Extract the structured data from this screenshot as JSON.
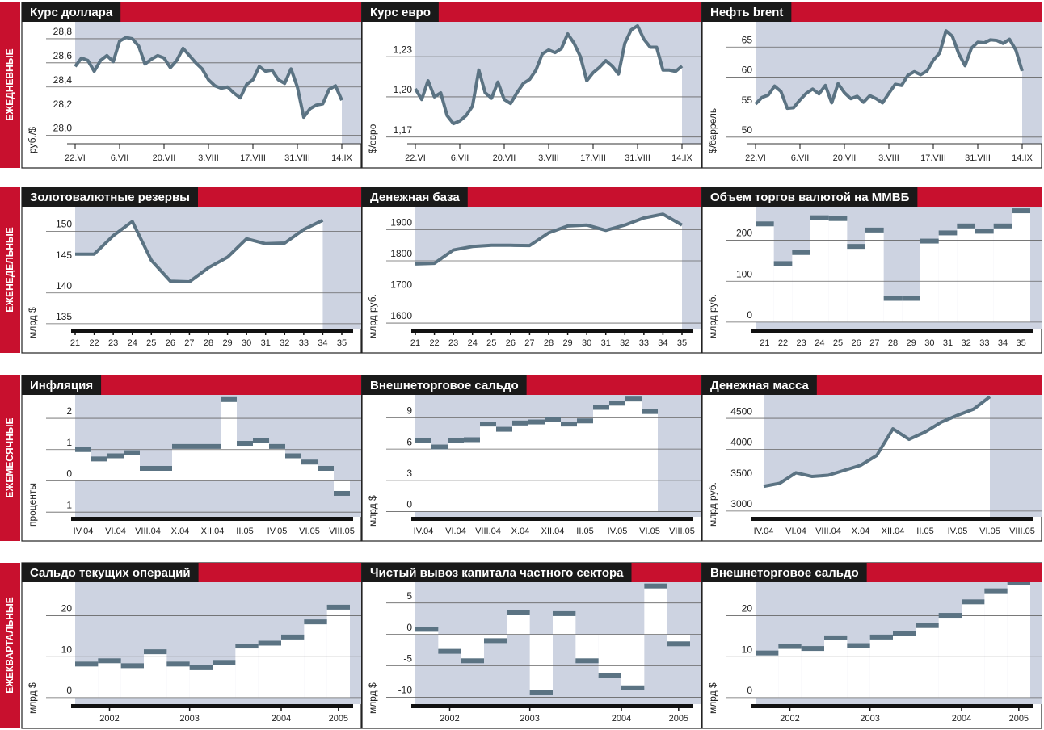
{
  "row_labels": [
    "ЕЖЕДНЕВНЫЕ",
    "ЕЖЕНЕДЕЛЬНЫЕ",
    "ЕЖЕМЕСЯЧНЫЕ",
    "ЕЖЕКВАРТАЛЬНЫЕ"
  ],
  "chart_data": [
    {
      "type": "line",
      "title": "Курс доллара",
      "y_label": "руб./$",
      "color": "#5b7383",
      "xlim": [
        0,
        42
      ],
      "xticks": [
        {
          "value": 0,
          "label": "22.VI"
        },
        {
          "value": 7,
          "label": "6.VII"
        },
        {
          "value": 14,
          "label": "20.VII"
        },
        {
          "value": 21,
          "label": "3.VIII"
        },
        {
          "value": 28,
          "label": "17.VIII"
        },
        {
          "value": 35,
          "label": "31.VIII"
        },
        {
          "value": 42,
          "label": "14.IX"
        }
      ],
      "ylim": [
        27.93,
        28.94
      ],
      "yticks": [
        {
          "value": 28.0,
          "label": "28,0"
        },
        {
          "value": 28.2,
          "label": "28,2"
        },
        {
          "value": 28.4,
          "label": "28,4"
        },
        {
          "value": 28.6,
          "label": "28,6"
        },
        {
          "value": 28.8,
          "label": "28,8"
        }
      ],
      "values": [
        28.57,
        28.64,
        28.62,
        28.53,
        28.62,
        28.66,
        28.61,
        28.78,
        28.81,
        28.8,
        28.74,
        28.59,
        28.63,
        28.66,
        28.64,
        28.56,
        28.62,
        28.72,
        28.66,
        28.6,
        28.55,
        28.46,
        28.41,
        28.39,
        28.4,
        28.35,
        28.31,
        28.42,
        28.46,
        28.57,
        28.53,
        28.54,
        28.46,
        28.43,
        28.55,
        28.4,
        28.15,
        28.22,
        28.25,
        28.26,
        28.38,
        28.41,
        28.29
      ]
    },
    {
      "type": "line",
      "title": "Курс евро",
      "y_label": "$/евро",
      "color": "#5b7383",
      "xlim": [
        0,
        42
      ],
      "xticks": [
        {
          "value": 0,
          "label": "22.VI"
        },
        {
          "value": 7,
          "label": "6.VII"
        },
        {
          "value": 14,
          "label": "20.VII"
        },
        {
          "value": 21,
          "label": "3.VIII"
        },
        {
          "value": 28,
          "label": "17.VIII"
        },
        {
          "value": 35,
          "label": "31.VIII"
        },
        {
          "value": 42,
          "label": "14.IX"
        }
      ],
      "ylim": [
        1.165,
        1.256
      ],
      "yticks": [
        {
          "value": 1.17,
          "label": "1,17"
        },
        {
          "value": 1.2,
          "label": "1,20"
        },
        {
          "value": 1.23,
          "label": "1,23"
        }
      ],
      "values": [
        1.206,
        1.198,
        1.212,
        1.2,
        1.203,
        1.186,
        1.18,
        1.182,
        1.186,
        1.193,
        1.22,
        1.203,
        1.199,
        1.211,
        1.198,
        1.195,
        1.203,
        1.21,
        1.213,
        1.22,
        1.232,
        1.235,
        1.233,
        1.236,
        1.247,
        1.24,
        1.23,
        1.212,
        1.218,
        1.222,
        1.227,
        1.223,
        1.217,
        1.24,
        1.25,
        1.253,
        1.243,
        1.237,
        1.237,
        1.22,
        1.22,
        1.219,
        1.223
      ]
    },
    {
      "type": "line",
      "title": "Нефть brent",
      "y_label": "$/баррель",
      "color": "#5b7383",
      "xlim": [
        0,
        42
      ],
      "xticks": [
        {
          "value": 0,
          "label": "22.VI"
        },
        {
          "value": 7,
          "label": "6.VII"
        },
        {
          "value": 14,
          "label": "20.VII"
        },
        {
          "value": 21,
          "label": "3.VIII"
        },
        {
          "value": 28,
          "label": "17.VIII"
        },
        {
          "value": 35,
          "label": "31.VIII"
        },
        {
          "value": 42,
          "label": "14.IX"
        }
      ],
      "ylim": [
        48.9,
        69.2
      ],
      "yticks": [
        50,
        55,
        60,
        65
      ],
      "values": [
        55.5,
        56.6,
        57.0,
        58.5,
        57.6,
        54.8,
        54.9,
        56.2,
        57.3,
        58.0,
        57.2,
        58.6,
        55.7,
        58.9,
        57.4,
        56.4,
        56.8,
        55.8,
        56.9,
        56.4,
        55.7,
        57.3,
        58.8,
        58.6,
        60.3,
        60.9,
        60.4,
        61.0,
        62.8,
        64.0,
        67.7,
        66.8,
        63.9,
        61.9,
        64.8,
        65.8,
        65.7,
        66.2,
        66.1,
        65.6,
        66.3,
        64.5,
        61.0
      ]
    },
    {
      "type": "line",
      "title": "Золотовалютные резервы",
      "y_label": "млрд $",
      "color": "#5b7383",
      "x": [
        21,
        22,
        23,
        24,
        25,
        26,
        27,
        28,
        29,
        30,
        31,
        32,
        33,
        34
      ],
      "xlim": [
        21,
        35
      ],
      "xticks": [
        21,
        22,
        23,
        24,
        25,
        26,
        27,
        28,
        29,
        30,
        31,
        32,
        33,
        34,
        35
      ],
      "ylim": [
        134.2,
        154
      ],
      "yticks": [
        135,
        140,
        145,
        150
      ],
      "values": [
        146.3,
        146.3,
        149.3,
        151.6,
        145.3,
        141.9,
        141.8,
        144.1,
        145.8,
        148.8,
        148.0,
        148.1,
        150.3,
        151.8
      ]
    },
    {
      "type": "line",
      "title": "Денежная база",
      "y_label": "млрд руб.",
      "color": "#5b7383",
      "x": [
        21,
        22,
        23,
        24,
        25,
        26,
        27,
        28,
        29,
        30,
        31,
        32,
        33,
        34,
        35
      ],
      "xlim": [
        21,
        35
      ],
      "xticks": [
        21,
        22,
        23,
        24,
        25,
        26,
        27,
        28,
        29,
        30,
        31,
        32,
        33,
        34,
        35
      ],
      "ylim": [
        1582,
        1974
      ],
      "yticks": [
        1600,
        1700,
        1800,
        1900
      ],
      "values": [
        1790,
        1792,
        1835,
        1846,
        1850,
        1850,
        1849,
        1890,
        1912,
        1915,
        1898,
        1915,
        1938,
        1950,
        1915
      ]
    },
    {
      "type": "step",
      "title": "Объем торгов валютой на ММВБ",
      "y_label": "млрд руб.",
      "color": "#5b7383",
      "categories": [
        "21",
        "22",
        "23",
        "24",
        "25",
        "26",
        "27",
        "28",
        "29",
        "30",
        "31",
        "32",
        "33",
        "34",
        "35"
      ],
      "ylim": [
        -16,
        282
      ],
      "yticks": [
        0,
        100,
        200
      ],
      "values": [
        240,
        143,
        170,
        255,
        253,
        185,
        225,
        58,
        58,
        198,
        218,
        235,
        222,
        235,
        272
      ]
    },
    {
      "type": "step",
      "title": "Инфляция",
      "y_label": "проценты",
      "color": "#5b7383",
      "categories": [
        "IV.04",
        null,
        "VI.04",
        null,
        "VIII.04",
        null,
        "X.04",
        null,
        "XII.04",
        null,
        "II.05",
        null,
        "IV.05",
        null,
        "VI.05",
        null,
        "VIII.05"
      ],
      "ylim": [
        -1.15,
        2.75
      ],
      "yticks": [
        -1,
        0,
        1,
        2
      ],
      "values": [
        1.0,
        0.7,
        0.8,
        0.9,
        0.4,
        0.4,
        1.1,
        1.1,
        1.1,
        2.6,
        1.2,
        1.3,
        1.1,
        0.8,
        0.6,
        0.4,
        -0.4
      ]
    },
    {
      "type": "step",
      "title": "Внешнеторговое сальдо",
      "y_label": "млрд $",
      "color": "#5b7383",
      "categories": [
        "IV.04",
        null,
        "VI.04",
        null,
        "VIII.04",
        null,
        "X.04",
        null,
        "XII.04",
        null,
        "II.05",
        null,
        "IV.05",
        null,
        "VI.05",
        null,
        "VIII.05"
      ],
      "ylim": [
        -0.5,
        11.2
      ],
      "yticks": [
        0,
        3,
        6,
        9
      ],
      "values": [
        6.8,
        6.2,
        6.8,
        6.9,
        8.4,
        7.9,
        8.5,
        8.6,
        8.8,
        8.4,
        8.7,
        10.0,
        10.4,
        10.8,
        9.6,
        null,
        null
      ]
    },
    {
      "type": "line",
      "title": "Денежная масса",
      "y_label": "млрд руб.",
      "color": "#5b7383",
      "categories": [
        "IV.04",
        null,
        "VI.04",
        null,
        "VIII.04",
        null,
        "X.04",
        null,
        "XII.04",
        null,
        "II.05",
        null,
        "IV.05",
        null,
        "VI.05",
        null,
        "VIII.05"
      ],
      "ylim": [
        2907,
        4880
      ],
      "yticks": [
        3000,
        3500,
        4000,
        4500
      ],
      "values": [
        3400,
        3450,
        3620,
        3560,
        3580,
        3660,
        3740,
        3900,
        4330,
        4160,
        4280,
        4440,
        4550,
        4650,
        4850,
        null,
        null
      ]
    },
    {
      "type": "step",
      "title": "Сальдо текущих операций",
      "y_label": "млрд $",
      "color": "#5b7383",
      "xlim": [
        -0.5,
        11.5
      ],
      "xticks": [
        {
          "value": 1,
          "label": "2002"
        },
        {
          "value": 4.5,
          "label": "2003"
        },
        {
          "value": 8.5,
          "label": "2004"
        },
        {
          "value": 11,
          "label": "2005"
        }
      ],
      "ylim": [
        -1.6,
        28.2
      ],
      "yticks": [
        0,
        10,
        20
      ],
      "values": [
        8.2,
        9.0,
        7.8,
        11.2,
        8.2,
        7.3,
        8.6,
        12.6,
        13.3,
        14.8,
        18.5,
        22.1
      ]
    },
    {
      "type": "step",
      "title": "Чистый вывоз капитала частного сектора",
      "y_label": "млрд $",
      "color": "#5b7383",
      "xlim": [
        -0.5,
        11.5
      ],
      "xticks": [
        {
          "value": 1,
          "label": "2002"
        },
        {
          "value": 4.5,
          "label": "2003"
        },
        {
          "value": 8.5,
          "label": "2004"
        },
        {
          "value": 11,
          "label": "2005"
        }
      ],
      "ylim": [
        -11.1,
        8.3
      ],
      "yticks": [
        -10,
        -5,
        0,
        5
      ],
      "values": [
        0.8,
        -2.7,
        -4.2,
        -1.0,
        3.5,
        -9.3,
        3.3,
        -4.2,
        -6.5,
        -8.5,
        7.7,
        -1.5
      ]
    },
    {
      "type": "step",
      "title": "Внешнеторговое сальдо",
      "y_label": "млрд $",
      "color": "#5b7383",
      "xlim": [
        -0.5,
        11.5
      ],
      "xticks": [
        {
          "value": 1,
          "label": "2002"
        },
        {
          "value": 4.5,
          "label": "2003"
        },
        {
          "value": 8.5,
          "label": "2004"
        },
        {
          "value": 11,
          "label": "2005"
        }
      ],
      "ylim": [
        -1.6,
        28.2
      ],
      "yticks": [
        0,
        10,
        20
      ],
      "values": [
        10.9,
        12.5,
        12.0,
        14.6,
        12.7,
        14.8,
        15.6,
        17.6,
        20.1,
        23.4,
        26.1,
        28.0
      ]
    }
  ]
}
